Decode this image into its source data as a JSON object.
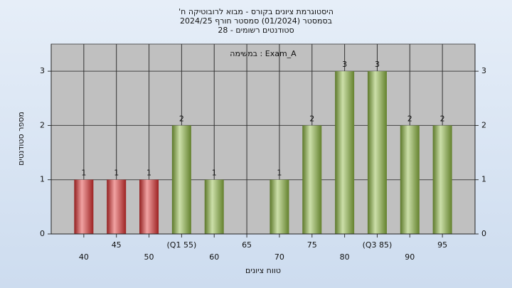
{
  "chart_data": {
    "type": "bar",
    "title": [
      "היסטוגרמת ציונים בקורס - מבוא לרובוטיקה ח'",
      "בסמסטר (01/2024)  סמסטר חורף 2024/25",
      "סטודנטים רשומים - 28"
    ],
    "annotation": "במשימה : Exam_A",
    "x_label": "טווח ציונים",
    "y_label": "מספר סטודנטים",
    "categories": [
      "40",
      "45",
      "50",
      "(Q1 55)",
      "60",
      "65",
      "70",
      "75",
      "80",
      "(Q3 85)",
      "90",
      "95"
    ],
    "values": [
      1,
      1,
      1,
      2,
      1,
      0,
      1,
      2,
      3,
      3,
      2,
      2
    ],
    "colors": [
      "#e03030",
      "#e03030",
      "#e03030",
      "#8db840",
      "#8db840",
      "#8db840",
      "#8db840",
      "#8db840",
      "#8db840",
      "#8db840",
      "#8db840",
      "#8db840"
    ],
    "ylim": [
      0,
      3.5
    ],
    "yticks": [
      0,
      1,
      2,
      3
    ],
    "grid": true
  }
}
